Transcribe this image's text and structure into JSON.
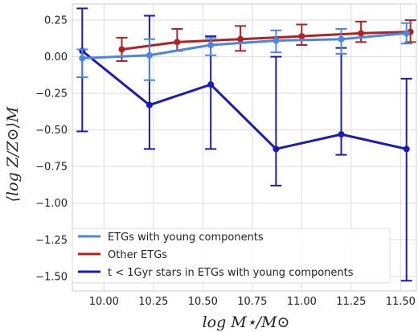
{
  "chart_data": {
    "type": "line",
    "xlabel": "log M⋆/M⊙",
    "ylabel": "⟨log Z/Z⊙⟩M",
    "xlim": [
      9.84,
      11.58
    ],
    "ylim": [
      -1.6,
      0.36
    ],
    "xticks": [
      10.0,
      10.25,
      10.5,
      10.75,
      11.0,
      11.25,
      11.5
    ],
    "xtick_labels": [
      "10.00",
      "10.25",
      "10.50",
      "10.75",
      "11.00",
      "11.25",
      "11.50"
    ],
    "yticks": [
      0.25,
      0.0,
      -0.25,
      -0.5,
      -0.75,
      -1.0,
      -1.25,
      -1.5
    ],
    "ytick_labels": [
      "0.25",
      "0.00",
      "−0.25",
      "−0.50",
      "−0.75",
      "−1.00",
      "−1.25",
      "−1.50"
    ],
    "grid": true,
    "legend_position": "bottom-left",
    "series": [
      {
        "name": "ETGs with young components",
        "color": "#4a86e8",
        "x": [
          9.89,
          10.23,
          10.54,
          10.87,
          11.2,
          11.53
        ],
        "y": [
          -0.01,
          0.01,
          0.08,
          0.11,
          0.12,
          0.16
        ],
        "yerr_low": [
          0.13,
          0.17,
          0.07,
          0.08,
          0.1,
          0.07
        ],
        "yerr_high": [
          0.06,
          0.11,
          0.05,
          0.07,
          0.07,
          0.07
        ]
      },
      {
        "name": "Other ETGs",
        "color": "#b22222",
        "x": [
          10.09,
          10.37,
          10.69,
          11.0,
          11.3,
          11.55
        ],
        "y": [
          0.05,
          0.1,
          0.12,
          0.14,
          0.16,
          0.17
        ],
        "yerr_low": [
          0.08,
          0.06,
          0.08,
          0.06,
          0.06,
          0.07
        ],
        "yerr_high": [
          0.08,
          0.09,
          0.09,
          0.08,
          0.08,
          0.08
        ]
      },
      {
        "name": "t < 1Gyr stars in ETGs with young components",
        "color": "#1a1ab8",
        "x": [
          9.89,
          10.23,
          10.54,
          10.87,
          11.2,
          11.53
        ],
        "y": [
          0.04,
          -0.33,
          -0.19,
          -0.63,
          -0.53,
          -0.63
        ],
        "yerr_low": [
          0.55,
          0.3,
          0.44,
          0.25,
          0.14,
          0.9
        ],
        "yerr_high": [
          0.29,
          0.61,
          0.33,
          0.63,
          0.59,
          0.48
        ]
      }
    ]
  }
}
